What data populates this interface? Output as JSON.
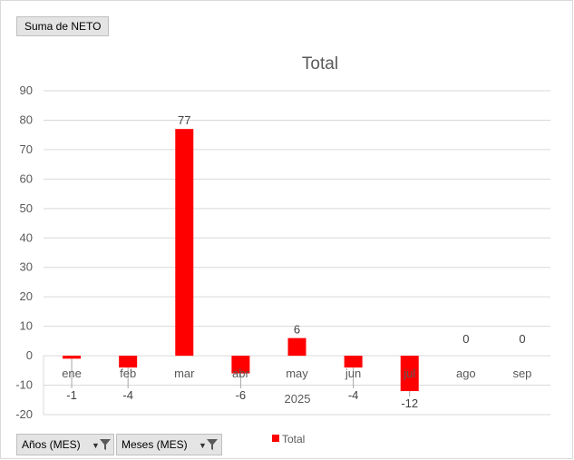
{
  "field_button": {
    "label": "Suma de NETO"
  },
  "filters": {
    "years_label": "Años (MES)",
    "months_label": "Meses (MES)"
  },
  "chart_data": {
    "type": "bar",
    "title": "Total",
    "categories": [
      "ene",
      "feb",
      "mar",
      "abr",
      "may",
      "jun",
      "jul",
      "ago",
      "sep"
    ],
    "group_label": "2025",
    "series": [
      {
        "name": "Total",
        "values": [
          -1,
          -4,
          77,
          -6,
          6,
          -4,
          -12,
          0,
          0
        ],
        "color": "#ff0000"
      }
    ],
    "data_labels": [
      "-1",
      "-4",
      "77",
      "-6",
      "6",
      "-4",
      "-12",
      "0",
      "0"
    ],
    "ylim": [
      -20,
      90
    ],
    "yticks": [
      -20,
      -10,
      0,
      10,
      20,
      30,
      40,
      50,
      60,
      70,
      80,
      90
    ],
    "grid": true,
    "legend_position": "bottom"
  }
}
